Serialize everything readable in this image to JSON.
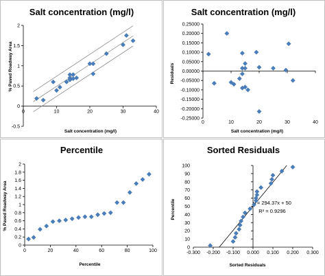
{
  "chart_data": [
    {
      "type": "scatter",
      "title": "Salt concentration (mg/l)",
      "xlabel": "Salt concentration (mg/l)",
      "ylabel": "% Paved Roadway Area",
      "xlim": [
        0,
        40
      ],
      "ylim": [
        -0.5,
        2
      ],
      "x_ticks": [
        "0",
        "10",
        "20",
        "30",
        "40"
      ],
      "y_ticks": [
        "-0.5",
        "0",
        "0.5",
        "1",
        "1.5",
        "2"
      ],
      "points": [
        {
          "x": 4,
          "y": 0.19
        },
        {
          "x": 6,
          "y": 0.15
        },
        {
          "x": 9,
          "y": 0.6
        },
        {
          "x": 10,
          "y": 0.39
        },
        {
          "x": 11,
          "y": 0.47
        },
        {
          "x": 13,
          "y": 0.6
        },
        {
          "x": 14,
          "y": 0.7
        },
        {
          "x": 14,
          "y": 0.65
        },
        {
          "x": 14,
          "y": 0.78
        },
        {
          "x": 15,
          "y": 0.68
        },
        {
          "x": 15,
          "y": 0.78
        },
        {
          "x": 16,
          "y": 0.7
        },
        {
          "x": 20,
          "y": 1.05
        },
        {
          "x": 21,
          "y": 0.8
        },
        {
          "x": 21,
          "y": 1.05
        },
        {
          "x": 25,
          "y": 1.3
        },
        {
          "x": 30,
          "y": 1.52
        },
        {
          "x": 31,
          "y": 1.75
        },
        {
          "x": 33,
          "y": 1.62
        }
      ],
      "fit_line": {
        "x": [
          3,
          33
        ],
        "y": [
          0.11,
          1.74
        ]
      },
      "bands": [
        {
          "x": [
            3,
            33
          ],
          "y": [
            0.36,
            1.99
          ]
        },
        {
          "x": [
            3,
            33
          ],
          "y": [
            -0.14,
            1.49
          ]
        }
      ],
      "grid": false,
      "legend": "none"
    },
    {
      "type": "scatter",
      "title": "Salt concentration (mg/l)",
      "xlabel": "Salt concentration (mg/l)",
      "ylabel": "Residuals",
      "xlim": [
        0,
        40
      ],
      "ylim": [
        -0.25,
        0.25
      ],
      "x_ticks": [
        "0",
        "10",
        "20",
        "30",
        "40"
      ],
      "y_ticks": [
        "0.25000",
        "0.20000",
        "0.15000",
        "0.10000",
        "0.05000",
        "0.00000",
        "-0.05000",
        "-0.10000",
        "-0.15000",
        "-0.20000",
        "-0.25000"
      ],
      "points": [
        {
          "x": 2,
          "y": 0.09
        },
        {
          "x": 4,
          "y": -0.065
        },
        {
          "x": 8.5,
          "y": 0.2
        },
        {
          "x": 10,
          "y": -0.06
        },
        {
          "x": 11,
          "y": -0.07
        },
        {
          "x": 13,
          "y": -0.04
        },
        {
          "x": 14,
          "y": 0.095
        },
        {
          "x": 14,
          "y": 0.015
        },
        {
          "x": 14,
          "y": -0.015
        },
        {
          "x": 14,
          "y": -0.09
        },
        {
          "x": 15,
          "y": 0.015
        },
        {
          "x": 15,
          "y": -0.085
        },
        {
          "x": 15,
          "y": 0.04
        },
        {
          "x": 16,
          "y": -0.1
        },
        {
          "x": 19,
          "y": 0.1
        },
        {
          "x": 20,
          "y": 0.02
        },
        {
          "x": 20,
          "y": -0.215
        },
        {
          "x": 25,
          "y": 0.015
        },
        {
          "x": 29.5,
          "y": 0.005
        },
        {
          "x": 30.5,
          "y": 0.145
        },
        {
          "x": 32,
          "y": -0.05
        }
      ],
      "grid": false,
      "legend": "none"
    },
    {
      "type": "scatter",
      "title": "Percentile",
      "xlabel": "Percentile",
      "ylabel": "% Paved Roadway Area",
      "xlim": [
        0,
        100
      ],
      "ylim": [
        0,
        2
      ],
      "x_ticks": [
        "0",
        "20",
        "40",
        "60",
        "80",
        "100"
      ],
      "y_ticks": [
        "0",
        "0.2",
        "0.4",
        "0.6",
        "0.8",
        "1",
        "1.2",
        "1.4",
        "1.6",
        "1.8",
        "2"
      ],
      "points": [
        {
          "x": 3,
          "y": 0.15
        },
        {
          "x": 7,
          "y": 0.19
        },
        {
          "x": 12,
          "y": 0.39
        },
        {
          "x": 17,
          "y": 0.47
        },
        {
          "x": 22,
          "y": 0.58
        },
        {
          "x": 27,
          "y": 0.6
        },
        {
          "x": 32,
          "y": 0.62
        },
        {
          "x": 37,
          "y": 0.65
        },
        {
          "x": 42,
          "y": 0.68
        },
        {
          "x": 47,
          "y": 0.7
        },
        {
          "x": 52,
          "y": 0.7
        },
        {
          "x": 57,
          "y": 0.75
        },
        {
          "x": 62,
          "y": 0.78
        },
        {
          "x": 67,
          "y": 0.8
        },
        {
          "x": 72,
          "y": 1.05
        },
        {
          "x": 77,
          "y": 1.05
        },
        {
          "x": 82,
          "y": 1.3
        },
        {
          "x": 87,
          "y": 1.52
        },
        {
          "x": 92,
          "y": 1.62
        },
        {
          "x": 97,
          "y": 1.75
        }
      ],
      "grid": false,
      "legend": "none"
    },
    {
      "type": "scatter",
      "title": "Sorted Residuals",
      "xlabel": "Sorted Residuals",
      "ylabel": "Percentile",
      "xlim": [
        -0.3,
        0.3
      ],
      "ylim": [
        0,
        100
      ],
      "x_ticks": [
        "-0.300",
        "-0.200",
        "-0.100",
        "0.000",
        "0.100",
        "0.200",
        "0.300"
      ],
      "y_ticks": [
        "0",
        "10",
        "20",
        "30",
        "40",
        "50",
        "60",
        "70",
        "80",
        "90",
        "100"
      ],
      "points": [
        {
          "x": -0.215,
          "y": 2
        },
        {
          "x": -0.1,
          "y": 7
        },
        {
          "x": -0.09,
          "y": 12
        },
        {
          "x": -0.085,
          "y": 17
        },
        {
          "x": -0.07,
          "y": 22
        },
        {
          "x": -0.065,
          "y": 27
        },
        {
          "x": -0.06,
          "y": 32
        },
        {
          "x": -0.05,
          "y": 37
        },
        {
          "x": -0.04,
          "y": 42
        },
        {
          "x": -0.015,
          "y": 47
        },
        {
          "x": 0.005,
          "y": 52
        },
        {
          "x": 0.015,
          "y": 57
        },
        {
          "x": 0.015,
          "y": 60
        },
        {
          "x": 0.02,
          "y": 64
        },
        {
          "x": 0.02,
          "y": 68
        },
        {
          "x": 0.04,
          "y": 73
        },
        {
          "x": 0.09,
          "y": 78
        },
        {
          "x": 0.095,
          "y": 83
        },
        {
          "x": 0.1,
          "y": 88
        },
        {
          "x": 0.145,
          "y": 93
        },
        {
          "x": 0.2,
          "y": 98
        }
      ],
      "trendline": {
        "slope": 294.37,
        "intercept": 50
      },
      "annotation": {
        "equation": "y = 294.37x + 50",
        "r_squared": "R² = 0.9296"
      },
      "grid": false,
      "legend": "none"
    }
  ]
}
